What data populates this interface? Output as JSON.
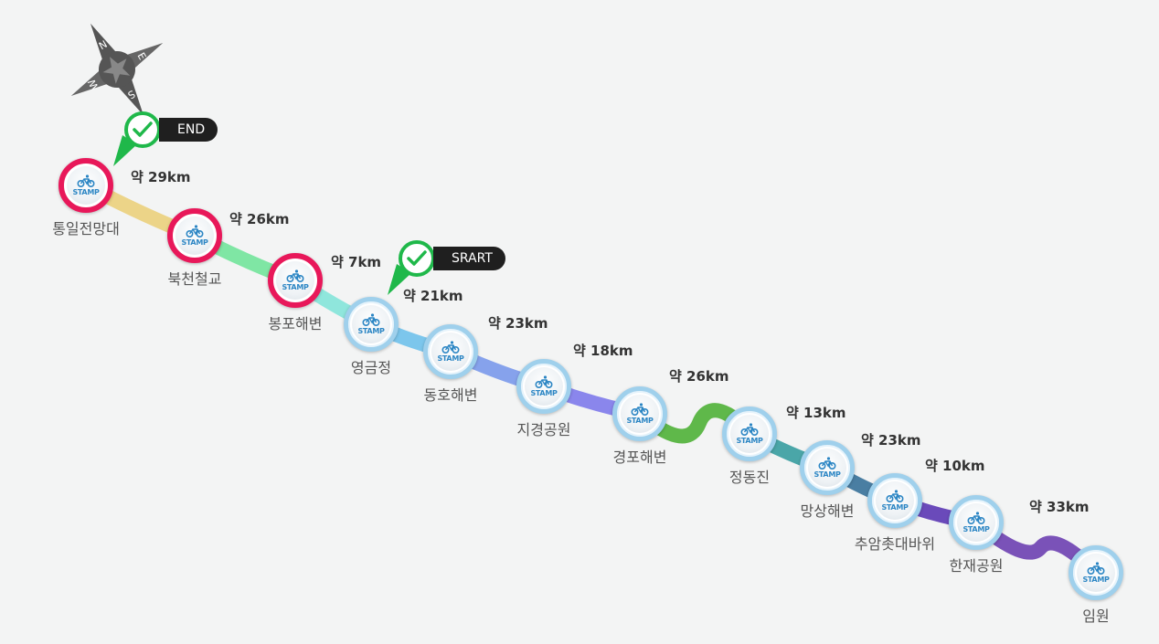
{
  "compass": {
    "letters": [
      "N",
      "E",
      "S",
      "W"
    ],
    "icon": "compass-rose-icon"
  },
  "markers": {
    "end": {
      "label": "END",
      "icon": "check-icon"
    },
    "start": {
      "label": "SRART",
      "icon": "check-icon"
    }
  },
  "stamp_label": "STAMP",
  "stations": [
    {
      "name": "통일전망대",
      "visited": true
    },
    {
      "name": "북천철교",
      "visited": true
    },
    {
      "name": "봉포해변",
      "visited": true
    },
    {
      "name": "영금정",
      "visited": false
    },
    {
      "name": "동호해변",
      "visited": false
    },
    {
      "name": "지경공원",
      "visited": false
    },
    {
      "name": "경포해변",
      "visited": false
    },
    {
      "name": "정동진",
      "visited": false
    },
    {
      "name": "망상해변",
      "visited": false
    },
    {
      "name": "추암촛대바위",
      "visited": false
    },
    {
      "name": "한재공원",
      "visited": false
    },
    {
      "name": "임원",
      "visited": false
    }
  ],
  "distances": [
    "약 29km",
    "약 26km",
    "약 7km",
    "약 21km",
    "약 23km",
    "약 18km",
    "약 26km",
    "약 13km",
    "약 23km",
    "약 10km",
    "약 33km"
  ],
  "segment_colors": [
    "#ecd488",
    "#7fe6a4",
    "#8fe6dc",
    "#7cc6ec",
    "#86a2ec",
    "#8a86ec",
    "#5fb84a",
    "#4aa6a8",
    "#4a7ea2",
    "#6a4aba",
    "#7a52b8"
  ],
  "colors": {
    "visited_ring": "#e8185a",
    "check_green": "#1fb84a",
    "tag_bg": "#1f1f1f"
  }
}
